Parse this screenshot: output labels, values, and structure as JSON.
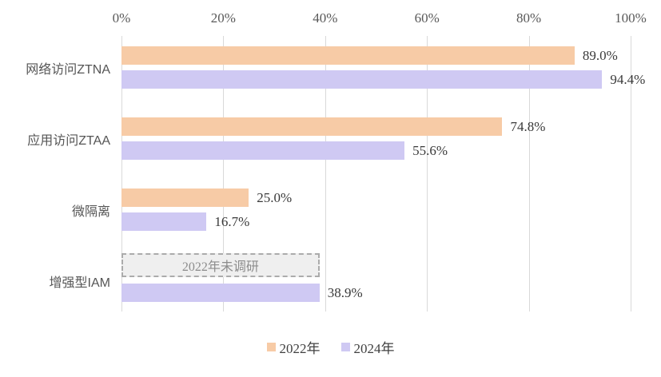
{
  "chart_data": {
    "type": "bar",
    "orientation": "horizontal",
    "title": "",
    "categories": [
      "网络访问ZTNA",
      "应用访问ZTAA",
      "微隔离",
      "增强型IAM"
    ],
    "series": [
      {
        "name": "2022年",
        "color": "#f7cba6",
        "values": [
          89.0,
          74.8,
          25.0,
          null
        ],
        "labels": [
          "89.0%",
          "74.8%",
          "25.0%",
          null
        ]
      },
      {
        "name": "2024年",
        "color": "#cfc9f3",
        "values": [
          94.4,
          55.6,
          16.7,
          38.9
        ],
        "labels": [
          "94.4%",
          "55.6%",
          "16.7%",
          "38.9%"
        ]
      }
    ],
    "x_axis": {
      "position": "top",
      "min": 0,
      "max": 100,
      "ticks": [
        "0%",
        "20%",
        "40%",
        "60%",
        "80%",
        "100%"
      ]
    },
    "annotations": [
      {
        "text": "2022年未调研",
        "category_index": 3,
        "series_index": 0,
        "width_pct": 38.9
      }
    ],
    "legend": {
      "position": "bottom",
      "entries": [
        "2022年",
        "2024年"
      ]
    },
    "grid": true,
    "colors": {
      "gridline": "#d9d9d9",
      "axis_text": "#595959",
      "category_text": "#555555",
      "value_text": "#3a3a3a",
      "annotation_fill": "#efefef",
      "annotation_border": "#ababab",
      "annotation_text": "#8c8c8c",
      "background": "#ffffff"
    }
  }
}
